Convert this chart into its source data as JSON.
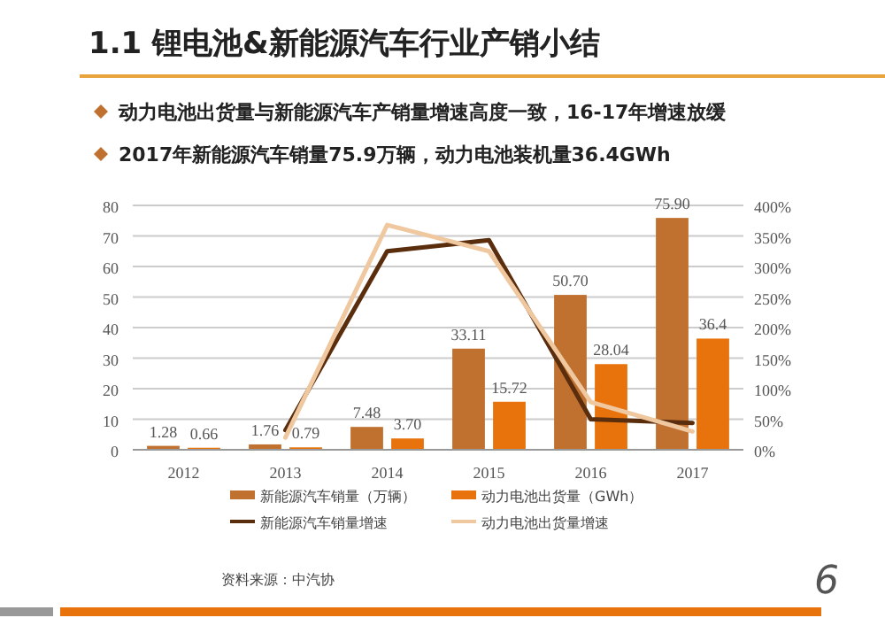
{
  "chart_data": {
    "type": "bar",
    "title": "1.1 锂电池&新能源汽车行业产销小结",
    "subtitle": "动力电池出货量与新能源汽车产销量增速高度一致，16-17年增速放缓",
    "annotations": [
      "2017年新能源汽车销量75.9万辆，动力电池装机量36.4GWh",
      "资料来源：中汽协",
      "6"
    ],
    "categories": [
      "2012",
      "2013",
      "2014",
      "2015",
      "2016",
      "2017"
    ],
    "series": [
      {
        "name": "新能源汽车销量（万辆）",
        "color": "#c0712f",
        "values": [
          1.28,
          1.76,
          7.48,
          33.11,
          50.7,
          75.9
        ],
        "value_labels": [
          "1.28",
          "1.76",
          "7.48",
          "33.11",
          "50.70",
          "75.90"
        ]
      },
      {
        "name": "动力电池出货量（GWh）",
        "color": "#e8720c",
        "values": [
          0.66,
          0.79,
          3.7,
          15.72,
          28.04,
          36.4
        ],
        "value_labels": [
          "0.66",
          "0.79",
          "3.70",
          "15.72",
          "28.04",
          "36.4"
        ]
      },
      {
        "name": "新能源汽车销量增速",
        "type": "line",
        "axis": "y2",
        "color": "#5a2d0c",
        "values": [
          null,
          32,
          325,
          343,
          50,
          44
        ]
      },
      {
        "name": "动力电池出货量增速",
        "type": "line",
        "axis": "y2",
        "color": "#f0c8a0",
        "values": [
          null,
          20,
          368,
          325,
          78,
          30
        ]
      }
    ],
    "ylim": [
      0,
      80
    ],
    "yticks": [
      0,
      10,
      20,
      30,
      40,
      50,
      60,
      70,
      80
    ],
    "y2lim": [
      0,
      400
    ],
    "y2ticks": [
      {
        "value": 0,
        "label": "0%"
      },
      {
        "value": 50,
        "label": "50%"
      },
      {
        "value": 100,
        "label": "100%"
      },
      {
        "value": 150,
        "label": "150%"
      },
      {
        "value": 200,
        "label": "200%"
      },
      {
        "value": 250,
        "label": "250%"
      },
      {
        "value": 300,
        "label": "300%"
      },
      {
        "value": 350,
        "label": "350%"
      },
      {
        "value": 400,
        "label": "400%"
      }
    ],
    "grid": "y",
    "legend": "bottom"
  }
}
